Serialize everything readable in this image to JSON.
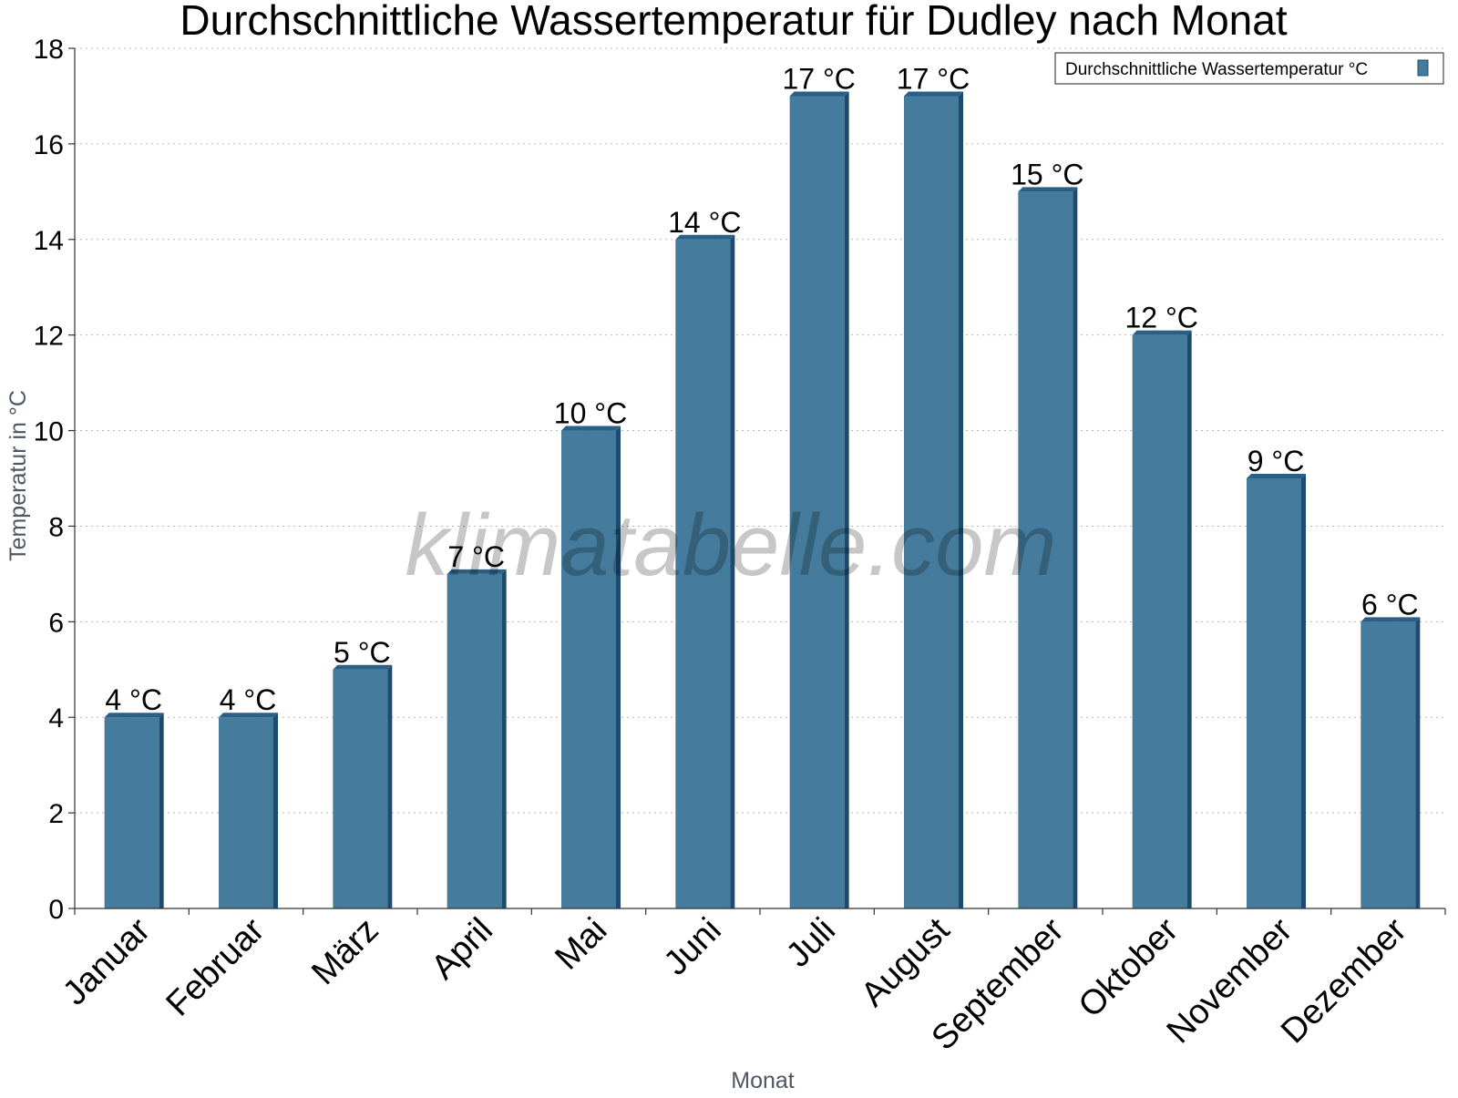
{
  "chart_data": {
    "type": "bar",
    "title": "Durchschnittliche Wassertemperatur für Dudley nach Monat",
    "xlabel": "Monat",
    "ylabel": "Temperatur in °C",
    "categories": [
      "Januar",
      "Februar",
      "März",
      "April",
      "Mai",
      "Juni",
      "Juli",
      "August",
      "September",
      "Oktober",
      "November",
      "Dezember"
    ],
    "series": [
      {
        "name": "Durchschnittliche Wassertemperatur °C",
        "values": [
          4,
          4,
          5,
          7,
          10,
          14,
          17,
          17,
          15,
          12,
          9,
          6
        ],
        "labels": [
          "4 °C",
          "4 °C",
          "5 °C",
          "7 °C",
          "10 °C",
          "14 °C",
          "17 °C",
          "17 °C",
          "15 °C",
          "12 °C",
          "9 °C",
          "6 °C"
        ]
      }
    ],
    "ylim": [
      0,
      18
    ],
    "yticks": [
      0,
      2,
      4,
      6,
      8,
      10,
      12,
      14,
      16,
      18
    ],
    "grid": true,
    "legend_position": "top-right",
    "colors": {
      "bar": "#457b9d",
      "bar_dark": "#1d4b6e",
      "bar_top": "#2b5f85"
    }
  },
  "watermark": "klimatabelle.com"
}
